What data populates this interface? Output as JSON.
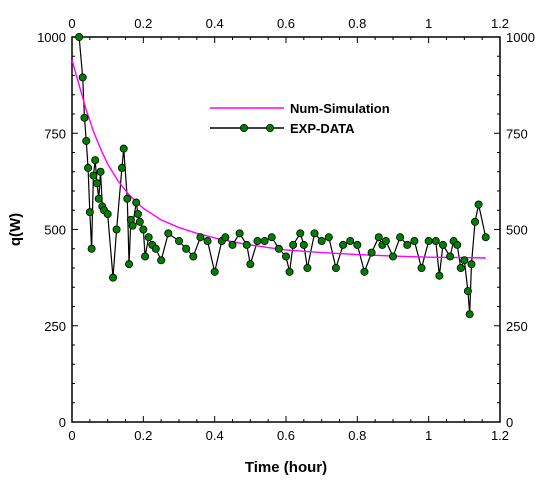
{
  "chart_data": {
    "type": "line",
    "xlabel": "Time (hour)",
    "ylabel": "q(W)",
    "xlim": [
      0,
      1.2
    ],
    "ylim": [
      0,
      1000
    ],
    "x_ticks": [
      "0",
      "0.2",
      "0.4",
      "0.6",
      "0.8",
      "1",
      "1.2"
    ],
    "y_ticks": [
      "0",
      "250",
      "500",
      "750",
      "1000"
    ],
    "x_tick_values": [
      0,
      0.2,
      0.4,
      0.6,
      0.8,
      1.0,
      1.2
    ],
    "y_tick_values": [
      0,
      250,
      500,
      750,
      1000
    ],
    "grid": false,
    "legend_position": "upper-right",
    "series": [
      {
        "name": "Num-Simulation",
        "color": "#ff00ff",
        "marker": "none",
        "x": [
          0.0,
          0.02,
          0.04,
          0.06,
          0.08,
          0.1,
          0.13,
          0.16,
          0.2,
          0.25,
          0.3,
          0.35,
          0.4,
          0.45,
          0.5,
          0.55,
          0.6,
          0.7,
          0.8,
          0.9,
          1.0,
          1.1,
          1.16
        ],
        "y": [
          940,
          875,
          810,
          755,
          710,
          670,
          625,
          590,
          555,
          525,
          505,
          490,
          478,
          468,
          460,
          453,
          447,
          440,
          435,
          431,
          428,
          427,
          426
        ]
      },
      {
        "name": "EXP-DATA",
        "color": "#000000",
        "marker_color": "#008000",
        "marker": "circle",
        "x": [
          0.02,
          0.03,
          0.035,
          0.04,
          0.045,
          0.05,
          0.055,
          0.06,
          0.065,
          0.07,
          0.075,
          0.08,
          0.085,
          0.09,
          0.1,
          0.115,
          0.125,
          0.14,
          0.145,
          0.155,
          0.16,
          0.165,
          0.17,
          0.18,
          0.185,
          0.19,
          0.2,
          0.205,
          0.215,
          0.225,
          0.235,
          0.25,
          0.27,
          0.3,
          0.32,
          0.34,
          0.36,
          0.38,
          0.4,
          0.42,
          0.43,
          0.45,
          0.47,
          0.49,
          0.5,
          0.52,
          0.54,
          0.56,
          0.58,
          0.6,
          0.61,
          0.62,
          0.64,
          0.65,
          0.66,
          0.68,
          0.7,
          0.72,
          0.74,
          0.76,
          0.78,
          0.8,
          0.82,
          0.84,
          0.86,
          0.87,
          0.88,
          0.9,
          0.92,
          0.94,
          0.96,
          0.98,
          1.0,
          1.02,
          1.03,
          1.04,
          1.06,
          1.07,
          1.08,
          1.09,
          1.1,
          1.11,
          1.115,
          1.12,
          1.13,
          1.14,
          1.16
        ],
        "y": [
          1000,
          895,
          790,
          730,
          660,
          545,
          450,
          640,
          680,
          620,
          580,
          650,
          560,
          550,
          540,
          375,
          500,
          660,
          710,
          580,
          410,
          525,
          510,
          570,
          540,
          520,
          500,
          430,
          480,
          460,
          450,
          420,
          490,
          470,
          450,
          430,
          480,
          470,
          390,
          470,
          480,
          460,
          490,
          460,
          410,
          470,
          470,
          480,
          450,
          430,
          390,
          460,
          490,
          460,
          400,
          490,
          470,
          480,
          400,
          460,
          470,
          460,
          390,
          440,
          480,
          460,
          470,
          430,
          480,
          460,
          470,
          400,
          470,
          470,
          380,
          460,
          430,
          470,
          460,
          400,
          420,
          340,
          280,
          410,
          520,
          565,
          480
        ]
      }
    ]
  }
}
